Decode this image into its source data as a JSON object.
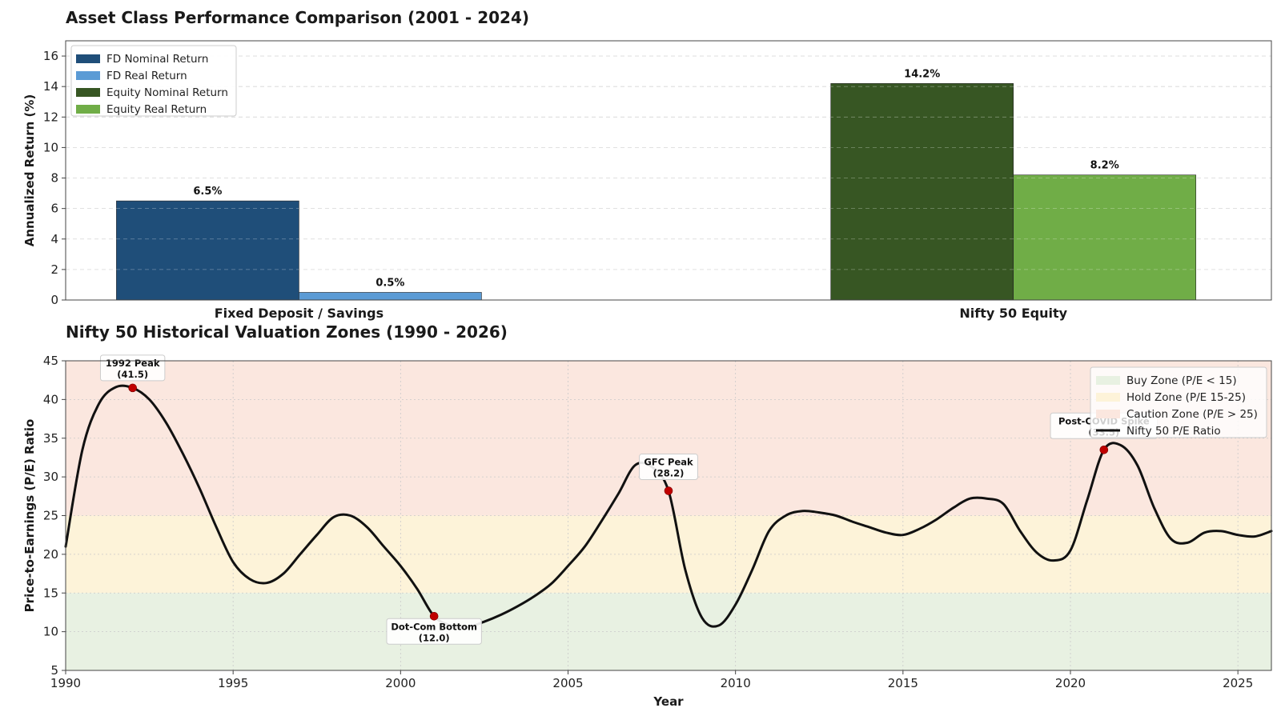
{
  "chart_data": [
    {
      "type": "bar",
      "title": "Asset Class Performance Comparison (2001 - 2024)",
      "ylabel": "Annualized Return (%)",
      "xlabel": "",
      "ylim": [
        0,
        17
      ],
      "yticks": [
        0,
        2,
        4,
        6,
        8,
        10,
        12,
        14,
        16
      ],
      "grid": true,
      "legend_placement": "top-left",
      "categories": [
        "Fixed Deposit / Savings",
        "Nifty 50 Equity"
      ],
      "bars": [
        {
          "category": "Fixed Deposit / Savings",
          "name": "FD Nominal Return",
          "value": 6.5,
          "label": "6.5%",
          "color": "#1f4e79"
        },
        {
          "category": "Fixed Deposit / Savings",
          "name": "FD Real Return",
          "value": 0.5,
          "label": "0.5%",
          "color": "#5b9bd5"
        },
        {
          "category": "Nifty 50 Equity",
          "name": "Equity Nominal Return",
          "value": 14.2,
          "label": "14.2%",
          "color": "#375623"
        },
        {
          "category": "Nifty 50 Equity",
          "name": "Equity Real Return",
          "value": 8.2,
          "label": "8.2%",
          "color": "#70ad47"
        }
      ]
    },
    {
      "type": "line",
      "title": "Nifty 50 Historical Valuation Zones (1990 - 2026)",
      "xlabel": "Year",
      "ylabel": "Price-to-Earnings (P/E) Ratio",
      "xlim": [
        1990,
        2026
      ],
      "ylim": [
        5,
        45
      ],
      "xticks": [
        1990,
        1995,
        2000,
        2005,
        2010,
        2015,
        2020,
        2025
      ],
      "yticks": [
        5,
        10,
        15,
        20,
        25,
        30,
        35,
        40,
        45
      ],
      "grid": true,
      "legend_placement": "top-right",
      "zones": [
        {
          "name": "Buy Zone (P/E < 15)",
          "from": 5,
          "to": 15,
          "color": "#e8f1e2"
        },
        {
          "name": "Hold Zone (P/E 15-25)",
          "from": 15,
          "to": 25,
          "color": "#fdf3d9"
        },
        {
          "name": "Caution Zone (P/E > 25)",
          "from": 25,
          "to": 45,
          "color": "#fbe7df"
        }
      ],
      "series": [
        {
          "name": "Nifty 50 P/E Ratio",
          "color": "#111111",
          "x": [
            1990,
            1990.5,
            1991,
            1991.5,
            1992,
            1992.5,
            1993,
            1993.5,
            1994,
            1994.5,
            1995,
            1995.5,
            1996,
            1996.5,
            1997,
            1997.5,
            1998,
            1998.5,
            1999,
            1999.5,
            2000,
            2000.5,
            2001,
            2001.5,
            2002,
            2002.5,
            2003,
            2003.5,
            2004,
            2004.5,
            2005,
            2005.5,
            2006,
            2006.5,
            2007,
            2007.5,
            2008,
            2008.5,
            2009,
            2009.5,
            2010,
            2010.5,
            2011,
            2011.5,
            2012,
            2012.5,
            2013,
            2013.5,
            2014,
            2014.5,
            2015,
            2015.5,
            2016,
            2016.5,
            2017,
            2017.5,
            2018,
            2018.5,
            2019,
            2019.5,
            2020,
            2020.5,
            2021,
            2021.5,
            2022,
            2022.5,
            2023,
            2023.5,
            2024,
            2024.5,
            2025,
            2025.5,
            2026
          ],
          "y": [
            21,
            33.5,
            39.5,
            41.6,
            41.5,
            40,
            37,
            33,
            28.5,
            23.5,
            19,
            16.8,
            16.3,
            17.5,
            20,
            22.5,
            24.8,
            25,
            23.5,
            21,
            18.5,
            15.5,
            12,
            10.8,
            10.6,
            11.3,
            12.2,
            13.3,
            14.6,
            16.2,
            18.5,
            21,
            24.3,
            27.8,
            31.5,
            31.3,
            28.2,
            18,
            11.8,
            10.8,
            13.5,
            18,
            23,
            25,
            25.6,
            25.4,
            25,
            24.2,
            23.5,
            22.8,
            22.5,
            23.3,
            24.5,
            26,
            27.2,
            27.2,
            26.5,
            23,
            20.2,
            19.2,
            20.5,
            27,
            33.5,
            34.1,
            31.5,
            26,
            22,
            21.5,
            22.8,
            23,
            22.5,
            22.3,
            23
          ]
        }
      ],
      "annotations": [
        {
          "label": "1992 Peak",
          "value_label": "(41.5)",
          "x": 1992,
          "y": 41.5
        },
        {
          "label": "Dot-Com Bottom",
          "value_label": "(12.0)",
          "x": 2001,
          "y": 12.0
        },
        {
          "label": "GFC Peak",
          "value_label": "(28.2)",
          "x": 2008,
          "y": 28.2
        },
        {
          "label": "Post-COVID Spike",
          "value_label": "(33.5)",
          "x": 2021,
          "y": 33.5
        }
      ],
      "marker_color": "#c00000"
    }
  ]
}
